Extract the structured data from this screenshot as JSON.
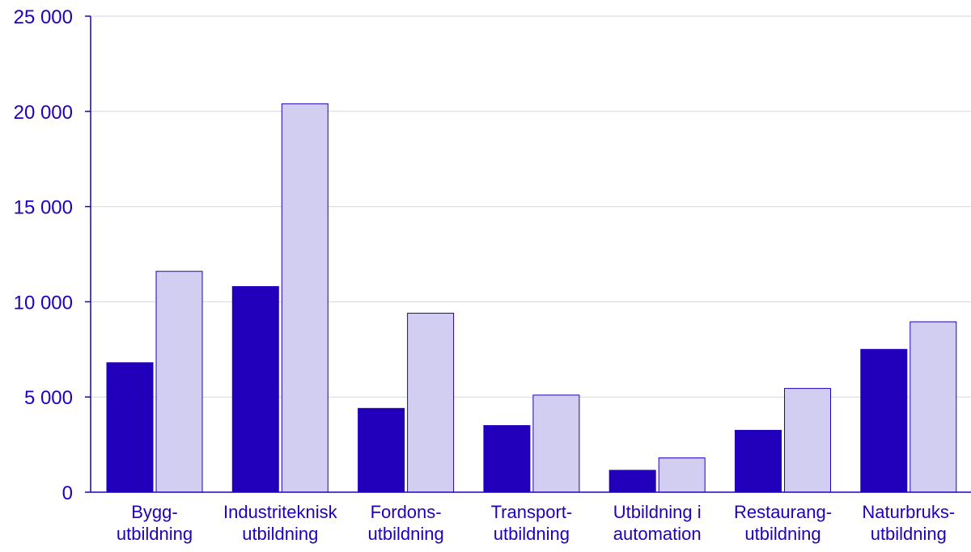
{
  "chart_data": {
    "type": "bar",
    "title": "",
    "xlabel": "",
    "ylabel": "",
    "ylim": [
      0,
      25000
    ],
    "yticks": [
      0,
      5000,
      10000,
      15000,
      20000,
      25000
    ],
    "ytick_labels": [
      "0",
      "5 000",
      "10 000",
      "15 000",
      "20 000",
      "25 000"
    ],
    "grid": true,
    "legend": "none",
    "categories": [
      [
        "Bygg-",
        "utbildning"
      ],
      [
        "Industriteknisk",
        "utbildning"
      ],
      [
        "Fordons-",
        "utbildning"
      ],
      [
        "Transport-",
        "utbildning"
      ],
      [
        "Utbildning i",
        "automation"
      ],
      [
        "Restaurang-",
        "utbildning"
      ],
      [
        "Naturbruks-",
        "utbildning"
      ]
    ],
    "series": [
      {
        "values": [
          6800,
          10800,
          4400,
          3500,
          1150,
          3250,
          7500
        ],
        "color": "#2200BB"
      },
      {
        "values": [
          11600,
          20400,
          9400,
          5100,
          1800,
          5450,
          8950
        ],
        "color": "#D1CEF2"
      }
    ],
    "colors": {
      "axis": "#2200BB",
      "grid": "#D5D2F2",
      "text": "#2200BB",
      "bar_stroke": "#2200BB"
    }
  }
}
